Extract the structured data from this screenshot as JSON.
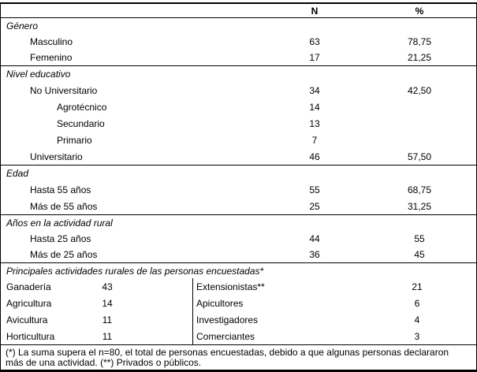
{
  "colors": {
    "background": "#ffffff",
    "text": "#000000",
    "border": "#000000"
  },
  "table": {
    "columns": {
      "n": "N",
      "pct": "%"
    },
    "sections": [
      {
        "header": "Género",
        "rows": [
          {
            "label": "Masculino",
            "indent": 1,
            "n": "63",
            "pct": "78,75"
          },
          {
            "label": "Femenino",
            "indent": 1,
            "n": "17",
            "pct": "21,25"
          }
        ]
      },
      {
        "header": "Nivel educativo",
        "rows": [
          {
            "label": "No Universitario",
            "indent": 1,
            "n": "34",
            "pct": "42,50"
          },
          {
            "label": "Agrotécnico",
            "indent": 2,
            "n": "14",
            "pct": ""
          },
          {
            "label": "Secundario",
            "indent": 2,
            "n": "13",
            "pct": ""
          },
          {
            "label": "Primario",
            "indent": 2,
            "n": "7",
            "pct": ""
          },
          {
            "label": "Universitario",
            "indent": 1,
            "n": "46",
            "pct": "57,50"
          }
        ]
      },
      {
        "header": "Edad",
        "rows": [
          {
            "label": "Hasta 55 años",
            "indent": 1,
            "n": "55",
            "pct": "68,75"
          },
          {
            "label": "Más de 55 años",
            "indent": 1,
            "n": "25",
            "pct": "31,25"
          }
        ]
      },
      {
        "header": "Años en la actividad rural",
        "rows": [
          {
            "label": "Hasta 25 años",
            "indent": 1,
            "n": "44",
            "pct": "55"
          },
          {
            "label": "Más de 25 años",
            "indent": 1,
            "n": "36",
            "pct": "45"
          }
        ]
      }
    ],
    "activities": {
      "header": "Principales actividades rurales de las personas encuestadas*",
      "left": [
        {
          "label": "Ganadería",
          "value": "43"
        },
        {
          "label": "Agricultura",
          "value": "14"
        },
        {
          "label": "Avicultura",
          "value": "11"
        },
        {
          "label": "Horticultura",
          "value": "11"
        }
      ],
      "right": [
        {
          "label": "Extensionistas**",
          "value": "21"
        },
        {
          "label": "Apicultores",
          "value": "6"
        },
        {
          "label": "Investigadores",
          "value": "4"
        },
        {
          "label": "Comerciantes",
          "value": "3"
        }
      ]
    },
    "footnote_lines": [
      "(*) La suma supera el n=80, el total de personas encuestadas, debido a que algunas personas declararon",
      "más de una actividad. (**) Privados o públicos."
    ]
  }
}
